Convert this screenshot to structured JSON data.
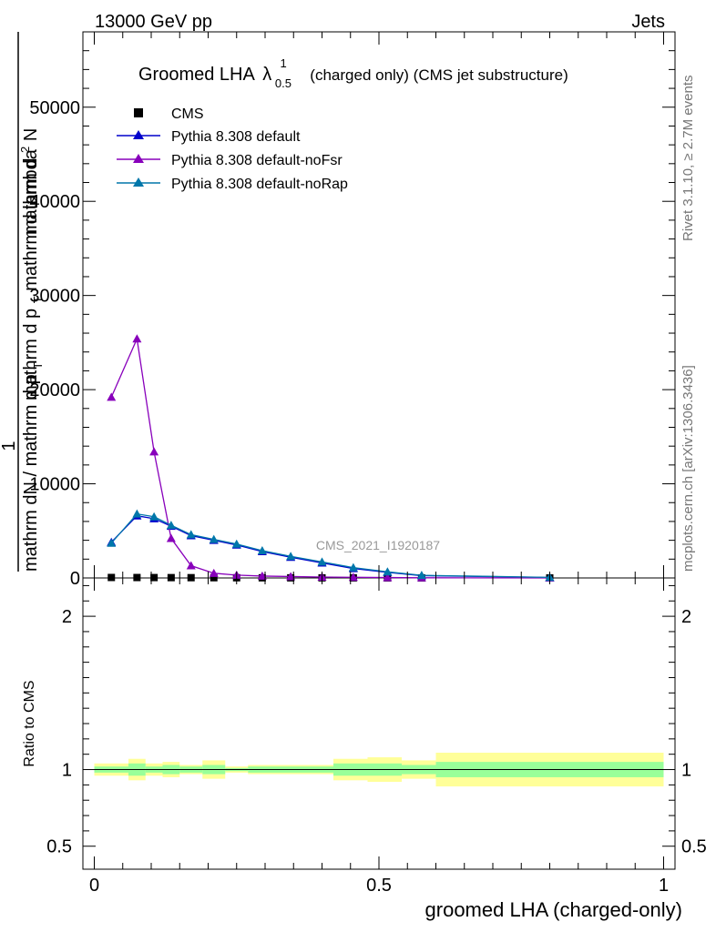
{
  "header": {
    "energy": "13000 GeV pp",
    "process": "Jets"
  },
  "side_labels": {
    "rivet": "Rivet 3.1.10, ≥ 2.7M events",
    "mcplots": "mcplots.cern.ch [arXiv:1306.3436]"
  },
  "watermark": "CMS_2021_I1920187",
  "title": {
    "main": "Groomed LHA",
    "lambda": "λ",
    "sup": "1",
    "sub": "0.5",
    "suffix": "(charged only) (CMS jet substructure)"
  },
  "ylabel_stack": {
    "line1": "1",
    "line2": "mathrm dN / mathrm d p",
    "line2_sub": "T",
    "line3": "mathrm d p",
    "line3_sub": "T",
    "line3_rest": " mathrm d lambda",
    "line4": "mathrm d",
    "line4_sup": "2",
    "line4_rest": "N"
  },
  "ratio_ylabel": "Ratio to CMS",
  "xlabel": "groomed LHA (charged-only)",
  "colors": {
    "data": "#000000",
    "default": "#0000cc",
    "noFsr": "#8800bb",
    "noRap": "#0077aa",
    "band_inner": "#99ff99",
    "band_outer": "#ffff99"
  },
  "chart_data": [
    {
      "type": "line",
      "xlim": [
        -0.02,
        1.02
      ],
      "ylim": [
        0,
        58000
      ],
      "xticks": [
        0,
        0.5,
        1
      ],
      "xtick_labels": [
        "0",
        "0.5",
        "1"
      ],
      "yticks": [
        0,
        10000,
        20000,
        30000,
        40000,
        50000
      ],
      "ytick_labels": [
        "0",
        "10000",
        "20000",
        "30000",
        "40000",
        "50000"
      ],
      "legend_placement": "top-left",
      "series": [
        {
          "name": "CMS",
          "marker": "square",
          "x": [
            0.03,
            0.075,
            0.105,
            0.135,
            0.17,
            0.21,
            0.25,
            0.295,
            0.345,
            0.4,
            0.455,
            0.515,
            0.575,
            0.8
          ],
          "y": [
            50,
            45,
            40,
            35,
            30,
            25,
            20,
            15,
            12,
            10,
            8,
            6,
            4,
            2
          ]
        },
        {
          "name": "Pythia 8.308 default",
          "marker": "triangle",
          "x": [
            0.03,
            0.075,
            0.105,
            0.135,
            0.17,
            0.21,
            0.25,
            0.295,
            0.345,
            0.4,
            0.455,
            0.515,
            0.575,
            0.8
          ],
          "y": [
            3800,
            6600,
            6300,
            5500,
            4500,
            4000,
            3500,
            2800,
            2200,
            1600,
            1000,
            600,
            250,
            50
          ]
        },
        {
          "name": "Pythia 8.308 default-noFsr",
          "marker": "triangle",
          "x": [
            0.03,
            0.075,
            0.105,
            0.135,
            0.17,
            0.21,
            0.25,
            0.295,
            0.345,
            0.4,
            0.455,
            0.515,
            0.575,
            0.8
          ],
          "y": [
            19200,
            25400,
            13400,
            4200,
            1300,
            500,
            300,
            200,
            150,
            100,
            70,
            40,
            20,
            5
          ]
        },
        {
          "name": "Pythia 8.308 default-noRap",
          "marker": "triangle",
          "x": [
            0.03,
            0.075,
            0.105,
            0.135,
            0.17,
            0.21,
            0.25,
            0.295,
            0.345,
            0.4,
            0.455,
            0.515,
            0.575,
            0.8
          ],
          "y": [
            3700,
            6800,
            6500,
            5600,
            4600,
            4100,
            3600,
            2900,
            2300,
            1700,
            1100,
            650,
            280,
            60
          ]
        }
      ]
    },
    {
      "type": "area",
      "xlim": [
        -0.02,
        1.02
      ],
      "ylim": [
        0.35,
        2.25
      ],
      "yticks": [
        0.5,
        1,
        2
      ],
      "ytick_labels": [
        "0.5",
        "1",
        "2"
      ],
      "xticks": [
        0,
        0.5,
        1
      ],
      "xtick_labels": [
        "0",
        "0.5",
        "1"
      ],
      "bins": [
        {
          "lo": 0.0,
          "hi": 0.06,
          "inner": [
            0.98,
            1.02
          ],
          "outer": [
            0.96,
            1.04
          ]
        },
        {
          "lo": 0.06,
          "hi": 0.09,
          "inner": [
            0.96,
            1.04
          ],
          "outer": [
            0.93,
            1.07
          ]
        },
        {
          "lo": 0.09,
          "hi": 0.12,
          "inner": [
            0.98,
            1.02
          ],
          "outer": [
            0.96,
            1.04
          ]
        },
        {
          "lo": 0.12,
          "hi": 0.15,
          "inner": [
            0.97,
            1.03
          ],
          "outer": [
            0.95,
            1.05
          ]
        },
        {
          "lo": 0.15,
          "hi": 0.19,
          "inner": [
            0.98,
            1.02
          ],
          "outer": [
            0.97,
            1.03
          ]
        },
        {
          "lo": 0.19,
          "hi": 0.23,
          "inner": [
            0.97,
            1.03
          ],
          "outer": [
            0.94,
            1.06
          ]
        },
        {
          "lo": 0.23,
          "hi": 0.27,
          "inner": [
            0.99,
            1.01
          ],
          "outer": [
            0.98,
            1.02
          ]
        },
        {
          "lo": 0.27,
          "hi": 0.32,
          "inner": [
            0.98,
            1.02
          ],
          "outer": [
            0.97,
            1.03
          ]
        },
        {
          "lo": 0.32,
          "hi": 0.42,
          "inner": [
            0.98,
            1.02
          ],
          "outer": [
            0.97,
            1.03
          ]
        },
        {
          "lo": 0.42,
          "hi": 0.48,
          "inner": [
            0.96,
            1.04
          ],
          "outer": [
            0.93,
            1.07
          ]
        },
        {
          "lo": 0.48,
          "hi": 0.54,
          "inner": [
            0.96,
            1.04
          ],
          "outer": [
            0.92,
            1.08
          ]
        },
        {
          "lo": 0.54,
          "hi": 0.6,
          "inner": [
            0.97,
            1.03
          ],
          "outer": [
            0.94,
            1.06
          ]
        },
        {
          "lo": 0.6,
          "hi": 1.0,
          "inner": [
            0.95,
            1.05
          ],
          "outer": [
            0.89,
            1.11
          ]
        }
      ]
    }
  ]
}
